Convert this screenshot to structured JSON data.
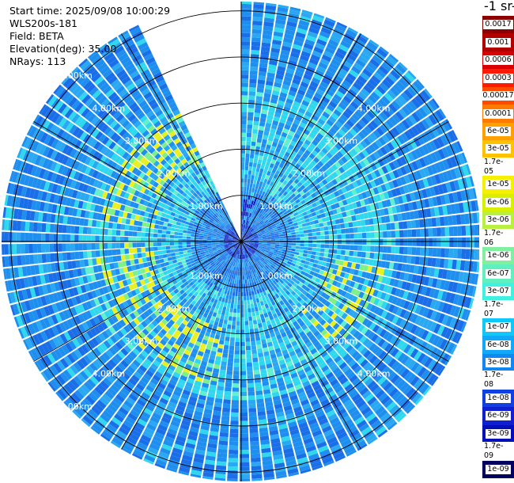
{
  "header": {
    "line1": "Start time: 2025/09/08 10:00:29",
    "line2": "WLS200s-181",
    "line3": "Field: BETA",
    "line4": "Elevation(deg): 35.00",
    "line5": "NRays: 113"
  },
  "colorbar": {
    "title": "-1 sr-",
    "labels": [
      "0.0017",
      "0.001",
      "0.0006",
      "0.0003",
      "0.00017",
      "0.0001",
      "6e-05",
      "3e-05",
      "1.7e-05",
      "1e-05",
      "6e-06",
      "3e-06",
      "1.7e-06",
      "1e-06",
      "6e-07",
      "3e-07",
      "1.7e-07",
      "1e-07",
      "6e-08",
      "3e-08",
      "1.7e-08",
      "1e-08",
      "6e-09",
      "3e-09",
      "1.7e-09",
      "1e-09"
    ],
    "colors": [
      "#8b0000",
      "#b00000",
      "#d80000",
      "#ff1a00",
      "#ff4a00",
      "#ff7a00",
      "#ffa000",
      "#ffc200",
      "#ffe000",
      "#f4f000",
      "#d8f000",
      "#b8f040",
      "#a0f080",
      "#80f0a0",
      "#60f0c0",
      "#40f0e0",
      "#20e8f0",
      "#10c8f8",
      "#10a8f8",
      "#1088f0",
      "#1068f0",
      "#1040e0",
      "#1020d0",
      "#0010b8",
      "#000890",
      "#000060"
    ]
  },
  "chart_data": {
    "type": "heatmap",
    "plot_type": "polar PPI",
    "field": "BETA",
    "range_unit": "km",
    "range_rings_km": [
      1,
      2,
      3,
      4,
      5
    ],
    "ring_labels": [
      "1.00km",
      "2.00km",
      "3.00km",
      "4.00km",
      "5.00km"
    ],
    "max_range_km": 5.2,
    "nrays": 113,
    "missing_azimuth_sector_deg": [
      335,
      360
    ],
    "grid": true,
    "colorbar_position": "right",
    "colorbar_scale": "log",
    "value_range": [
      1e-09,
      0.0017
    ],
    "typical_value": "3e-08",
    "enhanced_band_km": [
      1.9,
      3.2
    ],
    "enhanced_value": "1.7e-05",
    "near_field_value": "1e-08"
  }
}
